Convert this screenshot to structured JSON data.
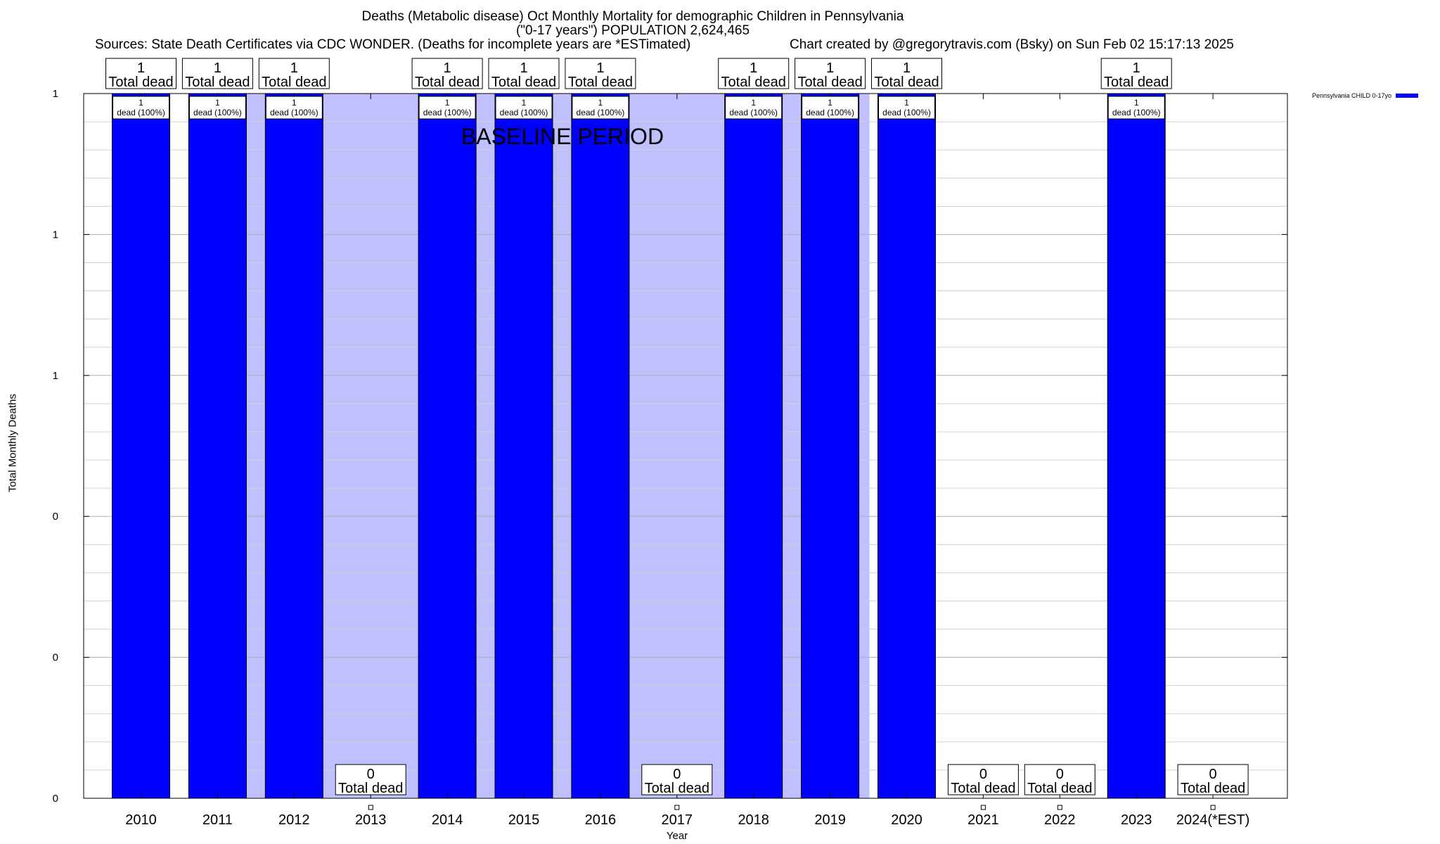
{
  "chart_data": {
    "type": "bar",
    "title": "Deaths (Metabolic disease) Oct Monthly Mortality for demographic Children in Pennsylvania",
    "subtitle": "(\"0-17 years\") POPULATION 2,624,465",
    "source": "Sources: State Death Certificates via CDC WONDER. (Deaths for incomplete years are *ESTimated)",
    "credit": "Chart created by @gregorytravis.com (Bsky) on Sun Feb 02 15:17:13 2025",
    "xlabel": "Year",
    "ylabel": "Total Monthly Deaths",
    "ylim": [
      0,
      1
    ],
    "y_tick_labels": [
      "0",
      "0",
      "0",
      "1",
      "1",
      "1"
    ],
    "grid": true,
    "legend_position": "top-right",
    "series": [
      {
        "name": "Pennsylvania CHILD 0-17yo",
        "color": "#0000ff",
        "values": [
          1,
          1,
          1,
          0,
          1,
          1,
          1,
          0,
          1,
          1,
          1,
          0,
          0,
          1,
          0
        ]
      }
    ],
    "categories": [
      "2010",
      "2011",
      "2012",
      "2013",
      "2014",
      "2015",
      "2016",
      "2017",
      "2018",
      "2019",
      "2020",
      "2021",
      "2022",
      "2023",
      "2024(*EST)"
    ],
    "total_labels": [
      "1",
      "1",
      "1",
      "0",
      "1",
      "1",
      "1",
      "0",
      "1",
      "1",
      "1",
      "0",
      "0",
      "1",
      "0"
    ],
    "total_label_suffix": "Total dead",
    "bar_labels": [
      "1\ndead (100%)",
      "1\ndead (100%)",
      "1\ndead (100%)",
      "",
      "1\ndead (100%)",
      "1\ndead (100%)",
      "1\ndead (100%)",
      "",
      "1\ndead (100%)",
      "1\ndead (100%)",
      "1\ndead (100%)",
      "",
      "",
      "1\ndead (100%)",
      ""
    ],
    "baseline_period": {
      "label": "BASELINE PERIOD",
      "from": "2012",
      "to": "2019",
      "color": "#c0c0ff"
    }
  }
}
